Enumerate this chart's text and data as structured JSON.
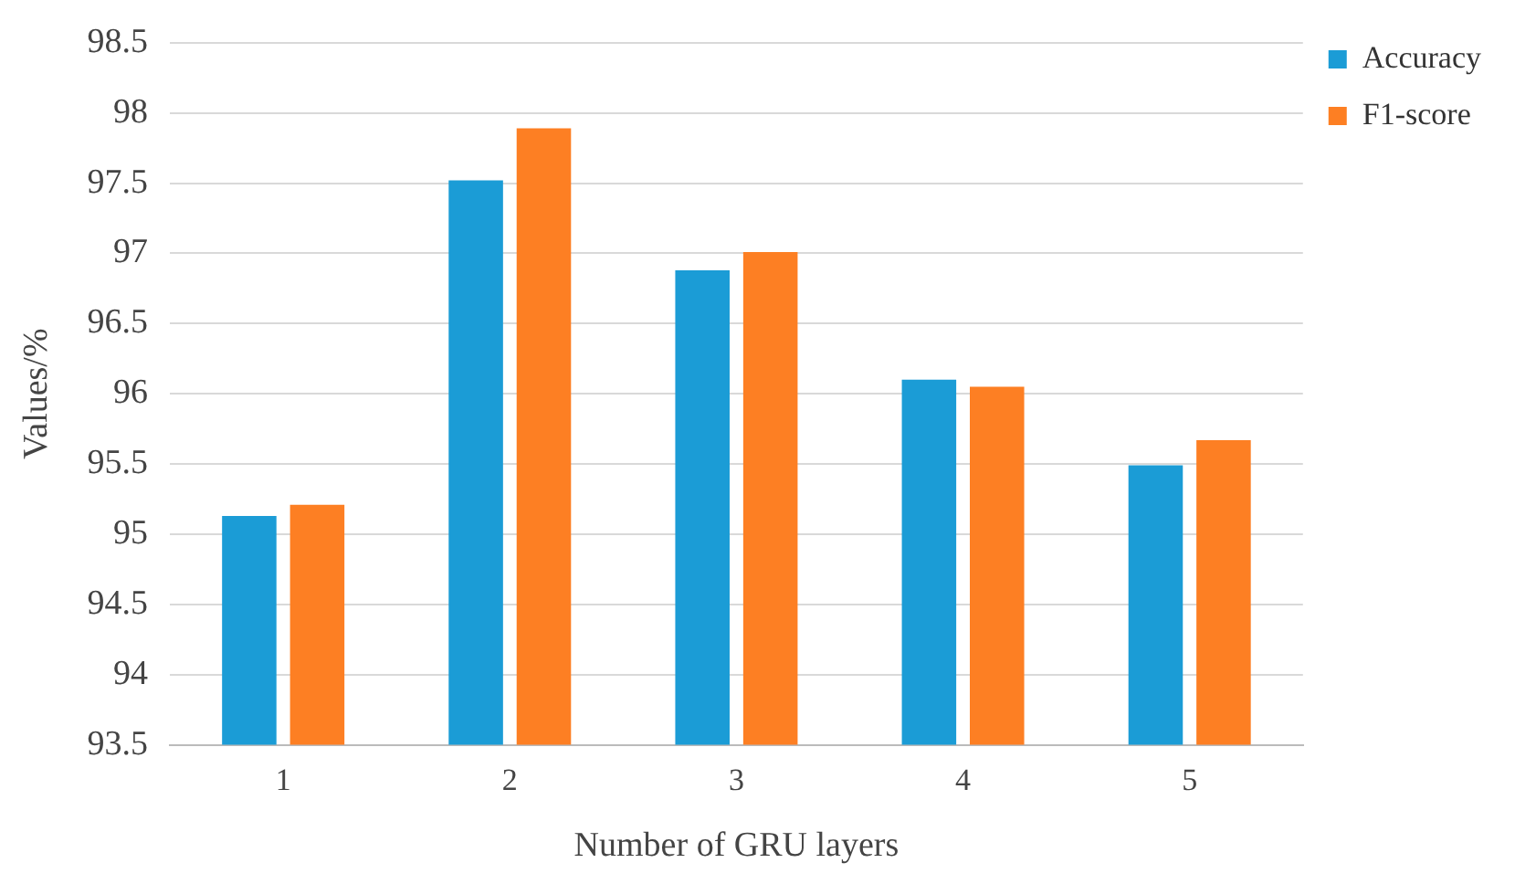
{
  "chart_data": {
    "type": "bar",
    "xlabel": "Number of GRU layers",
    "ylabel": "Values/%",
    "categories": [
      "1",
      "2",
      "3",
      "4",
      "5"
    ],
    "series": [
      {
        "name": "Accuracy",
        "color": "#1b9cd6",
        "values": [
          95.13,
          97.52,
          96.88,
          96.1,
          95.49
        ]
      },
      {
        "name": "F1-score",
        "color": "#fd7f23",
        "values": [
          95.21,
          97.89,
          97.01,
          96.05,
          95.67
        ]
      }
    ],
    "ylim": [
      93.5,
      98.5
    ],
    "yticks": [
      93.5,
      94,
      94.5,
      95,
      95.5,
      96,
      96.5,
      97,
      97.5,
      98,
      98.5
    ],
    "grid": "y",
    "legend": "top right"
  }
}
